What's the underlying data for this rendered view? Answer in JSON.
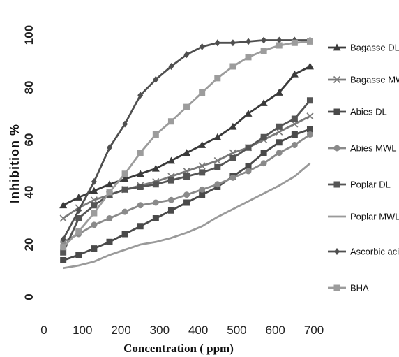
{
  "chart_data": {
    "type": "line",
    "title": "",
    "xlabel": "Concentration ( ppm)",
    "ylabel": "Inhibition %",
    "xlim": [
      0,
      700
    ],
    "ylim": [
      0,
      100
    ],
    "x_ticks": [
      "0",
      "100",
      "200",
      "300",
      "400",
      "500",
      "600",
      "700"
    ],
    "y_ticks": [
      "0",
      "20",
      "40",
      "60",
      "80",
      "100"
    ],
    "grid": false,
    "legend_position": "right",
    "x": [
      50,
      90,
      130,
      170,
      210,
      250,
      290,
      330,
      370,
      410,
      450,
      490,
      530,
      570,
      610,
      650,
      690
    ],
    "series": [
      {
        "name": "Bagasse DL",
        "marker": "triangle",
        "color": "#3a3a3a",
        "values": [
          35,
          38,
          40.5,
          43,
          45,
          47,
          49,
          52,
          55,
          58,
          61,
          65,
          70,
          74,
          78,
          85,
          88
        ]
      },
      {
        "name": "Bagasse MWL",
        "marker": "x",
        "color": "#7a7a7a",
        "values": [
          30,
          34,
          37,
          39,
          41,
          42.5,
          44,
          46,
          48,
          50,
          52,
          55,
          57,
          60,
          63,
          66,
          69
        ]
      },
      {
        "name": "Abies DL",
        "marker": "square",
        "color": "#4a4a4a",
        "values": [
          14,
          16,
          18.5,
          21,
          24,
          27,
          30,
          33,
          36,
          39,
          42,
          46,
          50,
          55,
          59,
          62,
          64
        ]
      },
      {
        "name": "Abies MWL",
        "marker": "circle",
        "color": "#8a8a8a",
        "values": [
          21,
          24,
          27.5,
          30,
          32.5,
          35,
          36,
          37,
          39,
          41,
          43,
          45.5,
          48,
          51,
          55,
          58,
          62
        ]
      },
      {
        "name": "Poplar DL",
        "marker": "square",
        "color": "#555555",
        "values": [
          17,
          30,
          35,
          39,
          41,
          42,
          43,
          44.5,
          46,
          47.5,
          49.5,
          53,
          57,
          61,
          65,
          68,
          75
        ]
      },
      {
        "name": "Poplar MWL",
        "marker": "none",
        "color": "#9a9a9a",
        "values": [
          11,
          12,
          13.5,
          16,
          18,
          20,
          21,
          22.5,
          24.5,
          27,
          30.5,
          33.5,
          36.5,
          39.5,
          42.5,
          46,
          51
        ]
      },
      {
        "name": "Ascorbic acid",
        "marker": "diamond",
        "color": "#4f4f4f",
        "values": [
          22,
          33,
          44,
          57,
          66,
          77,
          83,
          88,
          92.5,
          95.5,
          97,
          97,
          97.5,
          98,
          98,
          98,
          98
        ]
      },
      {
        "name": "BHA",
        "marker": "square",
        "color": "#9c9c9c",
        "values": [
          19,
          25,
          32,
          40,
          47,
          55,
          62,
          67,
          72.5,
          78,
          83.5,
          88,
          91.5,
          94,
          96,
          97,
          97.5
        ]
      }
    ]
  }
}
